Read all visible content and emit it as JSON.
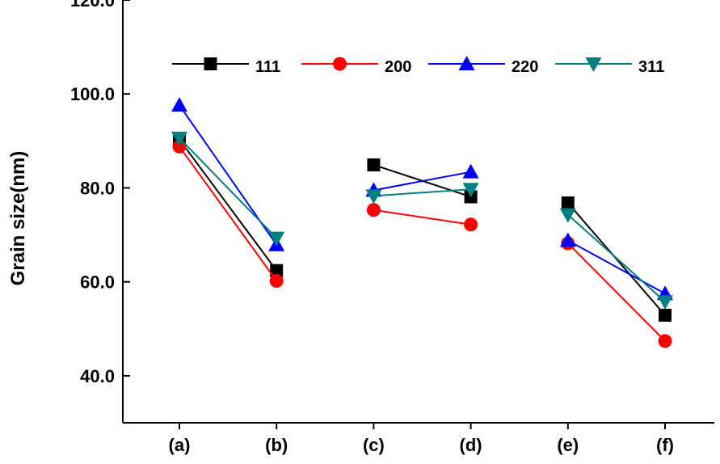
{
  "chart_data": {
    "type": "line",
    "title": "",
    "xlabel": "",
    "ylabel": "Grain size(nm)",
    "ylim": [
      30,
      120
    ],
    "y_ticks": [
      "40.0",
      "60.0",
      "80.0",
      "100.0",
      "120.0"
    ],
    "y_tick_values": [
      40,
      60,
      80,
      100,
      120
    ],
    "categories": [
      "(a)",
      "(b)",
      "(c)",
      "(d)",
      "(e)",
      "(f)"
    ],
    "groups": [
      [
        0,
        1
      ],
      [
        2,
        3
      ],
      [
        4,
        5
      ]
    ],
    "grid": false,
    "legend_position": "top",
    "series": [
      {
        "name": "111",
        "color": "#000000",
        "marker": "square",
        "values": [
          90.3,
          62.4,
          84.9,
          78.1,
          76.8,
          52.9
        ]
      },
      {
        "name": "200",
        "color": "#ff0000",
        "marker": "circle",
        "values": [
          88.8,
          60.2,
          75.3,
          72.2,
          68.2,
          47.4
        ]
      },
      {
        "name": "220",
        "color": "#0000ff",
        "marker": "triangle-up",
        "values": [
          97.6,
          67.9,
          79.5,
          83.4,
          68.8,
          57.5
        ]
      },
      {
        "name": "311",
        "color": "#008080",
        "marker": "triangle-down",
        "values": [
          90.6,
          69.3,
          78.3,
          79.7,
          74.3,
          55.8
        ]
      }
    ]
  }
}
